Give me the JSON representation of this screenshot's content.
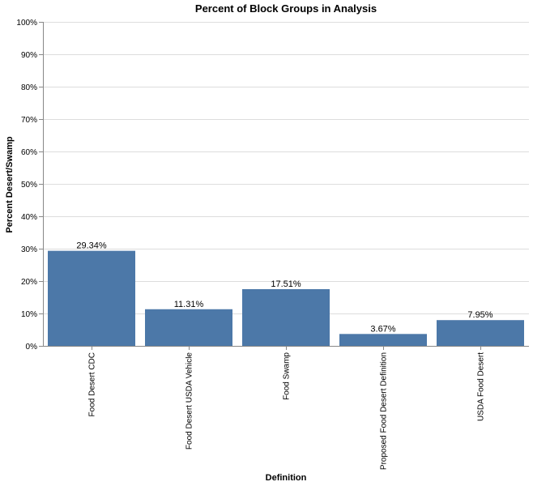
{
  "chart_data": {
    "type": "bar",
    "title": "Percent of Block Groups in Analysis",
    "xlabel": "Definition",
    "ylabel": "Percent Desert/Swamp",
    "categories": [
      "Food Desert CDC",
      "Food Desert USDA Vehicle",
      "Food Swamp",
      "Proposed Food Desert Definition",
      "USDA Food Desert"
    ],
    "values": [
      29.34,
      11.31,
      17.51,
      3.67,
      7.95
    ],
    "value_labels": [
      "29.34%",
      "11.31%",
      "17.51%",
      "3.67%",
      "7.95%"
    ],
    "ylim": [
      0,
      100
    ],
    "y_ticks": [
      0,
      10,
      20,
      30,
      40,
      50,
      60,
      70,
      80,
      90,
      100
    ],
    "y_tick_labels": [
      "0%",
      "10%",
      "20%",
      "30%",
      "40%",
      "50%",
      "60%",
      "70%",
      "80%",
      "90%",
      "100%"
    ],
    "grid": true,
    "bar_color": "#4c78a8"
  }
}
